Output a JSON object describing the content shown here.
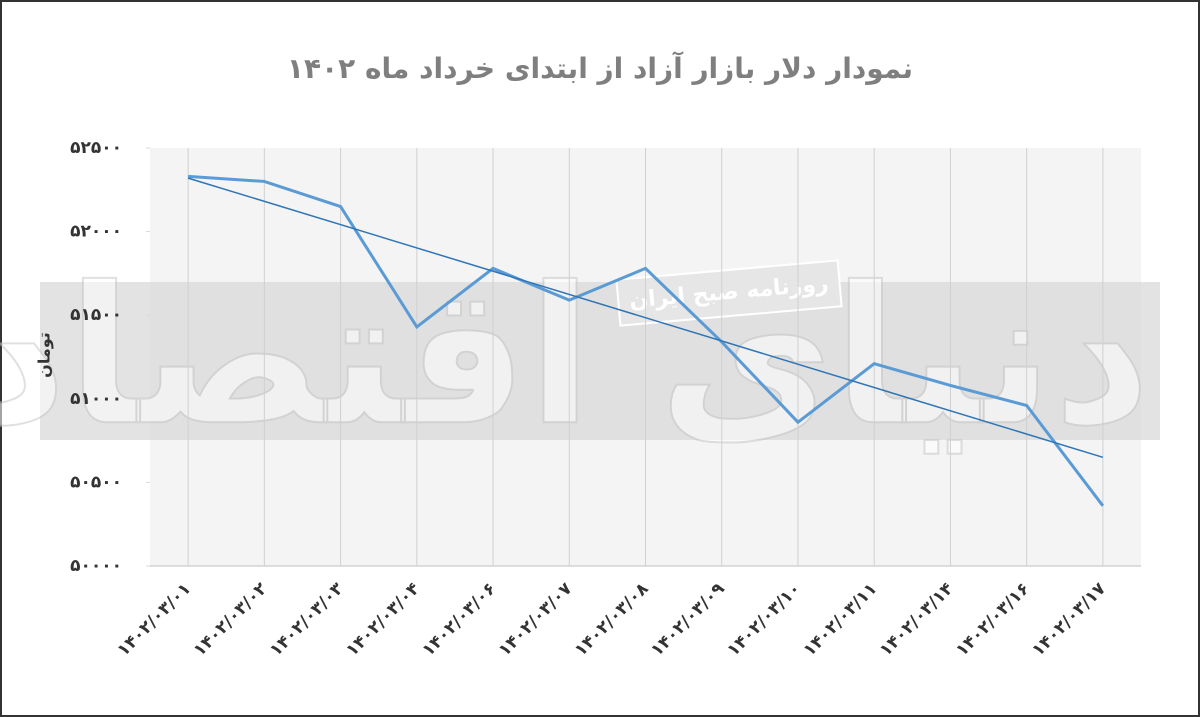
{
  "chart_data": {
    "type": "line",
    "title": "نمودار دلار بازار آزاد از ابتدای خرداد ماه ۱۴۰۲",
    "y_label": "تومان",
    "watermark": "دنیای اقتصاد",
    "watermark_caption": "روزنامه صبح ایران",
    "categories": [
      "۱۴۰۲/۰۳/۰۱",
      "۱۴۰۲/۰۳/۰۲",
      "۱۴۰۲/۰۳/۰۳",
      "۱۴۰۲/۰۳/۰۴",
      "۱۴۰۲/۰۳/۰۶",
      "۱۴۰۲/۰۳/۰۷",
      "۱۴۰۲/۰۳/۰۸",
      "۱۴۰۲/۰۳/۰۹",
      "۱۴۰۲/۰۳/۱۰",
      "۱۴۰۲/۰۳/۱۱",
      "۱۴۰۲/۰۳/۱۴",
      "۱۴۰۲/۰۳/۱۶",
      "۱۴۰۲/۰۳/۱۷"
    ],
    "series": [
      {
        "color": "#5b9bd5",
        "values": [
          52330,
          52300,
          52150,
          51430,
          51780,
          51590,
          51780,
          51340,
          50860,
          51210,
          51080,
          50960,
          50360
        ]
      }
    ],
    "trendline": {
      "color": "#2e75b6",
      "values": [
        52320,
        50650
      ]
    },
    "ylim": [
      50000,
      52500
    ],
    "yticks": [
      {
        "value": 50000,
        "label": "۵۰۰۰۰"
      },
      {
        "value": 50500,
        "label": "۵۰۵۰۰"
      },
      {
        "value": 51000,
        "label": "۵۱۰۰۰"
      },
      {
        "value": 51500,
        "label": "۵۱۵۰۰"
      },
      {
        "value": 52000,
        "label": "۵۲۰۰۰"
      },
      {
        "value": 52500,
        "label": "۵۲۵۰۰"
      }
    ],
    "grid": true
  }
}
